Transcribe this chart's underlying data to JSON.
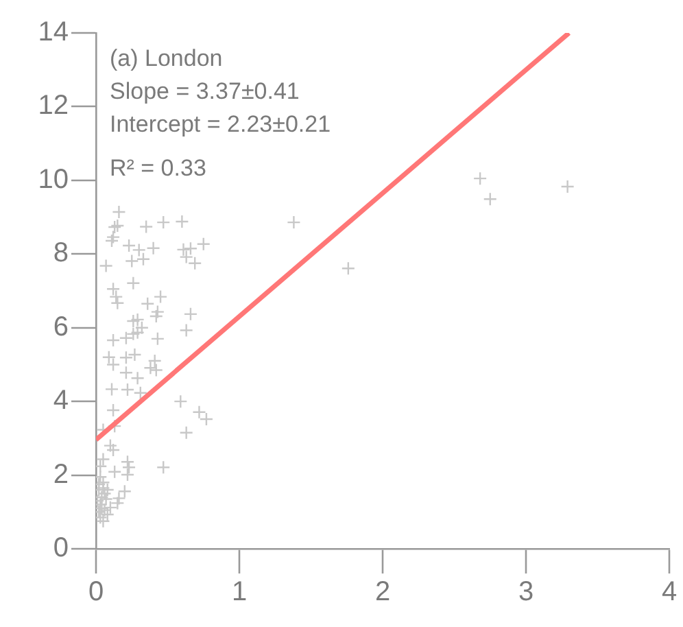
{
  "chart_data": {
    "type": "scatter",
    "xlim": [
      0,
      4
    ],
    "xticks": [
      0,
      1,
      2,
      3,
      4
    ],
    "ylim": [
      0,
      14
    ],
    "yticks": [
      0,
      2,
      4,
      6,
      8,
      10,
      12,
      14
    ],
    "grid": false,
    "legend": false,
    "marker": "cross",
    "annotations": [
      "(a) London",
      "Slope = 3.37±0.41",
      "Intercept = 2.23±0.21",
      "R² = 0.33"
    ],
    "series": [
      {
        "color": "#c8c8c8",
        "x": [
          0.16,
          0.15,
          0.13,
          0.12,
          0.11,
          0.35,
          0.47,
          0.6,
          0.23,
          0.3,
          0.4,
          0.61,
          0.66,
          0.75,
          0.63,
          0.69,
          0.25,
          0.33,
          0.07,
          0.26,
          0.12,
          0.14,
          0.15,
          0.36,
          0.45,
          0.43,
          0.42,
          0.66,
          0.26,
          0.29,
          0.32,
          0.29,
          0.26,
          0.63,
          0.21,
          0.12,
          0.43,
          0.09,
          0.12,
          0.21,
          0.27,
          0.41,
          0.38,
          0.42,
          0.21,
          0.29,
          0.11,
          0.22,
          0.31,
          0.59,
          0.72,
          0.77,
          0.63,
          0.12,
          0.13,
          0.05,
          0.1,
          0.12,
          0.22,
          0.23,
          0.47,
          0.13,
          0.22,
          0.05,
          0.03,
          0.2,
          0.16,
          0.15,
          0.1,
          0.08,
          0.05,
          0.02,
          0.03,
          0.04,
          0.02,
          0.05,
          0.03,
          0.06,
          0.04,
          0.01,
          0.05,
          0.07,
          0.02,
          0.06,
          0.08,
          0.03,
          1.38,
          1.76,
          2.68,
          2.75,
          3.29
        ],
        "values": [
          9.14,
          8.77,
          8.73,
          8.46,
          8.36,
          8.74,
          8.86,
          8.88,
          8.23,
          8.11,
          8.16,
          8.12,
          8.15,
          8.27,
          7.92,
          7.75,
          7.81,
          7.86,
          7.68,
          7.21,
          7.05,
          6.84,
          6.67,
          6.65,
          6.84,
          6.43,
          6.31,
          6.37,
          6.18,
          6.22,
          6,
          5.87,
          5.83,
          5.93,
          5.72,
          5.66,
          5.7,
          5.2,
          5,
          5.19,
          5.27,
          5.1,
          4.91,
          4.85,
          4.78,
          4.63,
          4.33,
          4.32,
          4.23,
          4,
          3.71,
          3.52,
          3.15,
          3.76,
          3.33,
          3.23,
          2.8,
          2.68,
          2.36,
          2.21,
          2.21,
          2.09,
          2.01,
          2.43,
          2.24,
          1.56,
          1.37,
          1.24,
          1.12,
          0.93,
          0.75,
          1,
          1.2,
          1.4,
          1.6,
          1.8,
          1.95,
          1.5,
          1.1,
          1.3,
          1.65,
          1.35,
          1.75,
          1.05,
          1.6,
          0.85,
          8.86,
          7.61,
          10.05,
          9.49,
          9.83
        ]
      },
      {
        "type": "line",
        "color": "#ff7777",
        "marker": "none",
        "x": [
          0,
          3.3
        ],
        "values": [
          2.96,
          14
        ]
      }
    ]
  }
}
